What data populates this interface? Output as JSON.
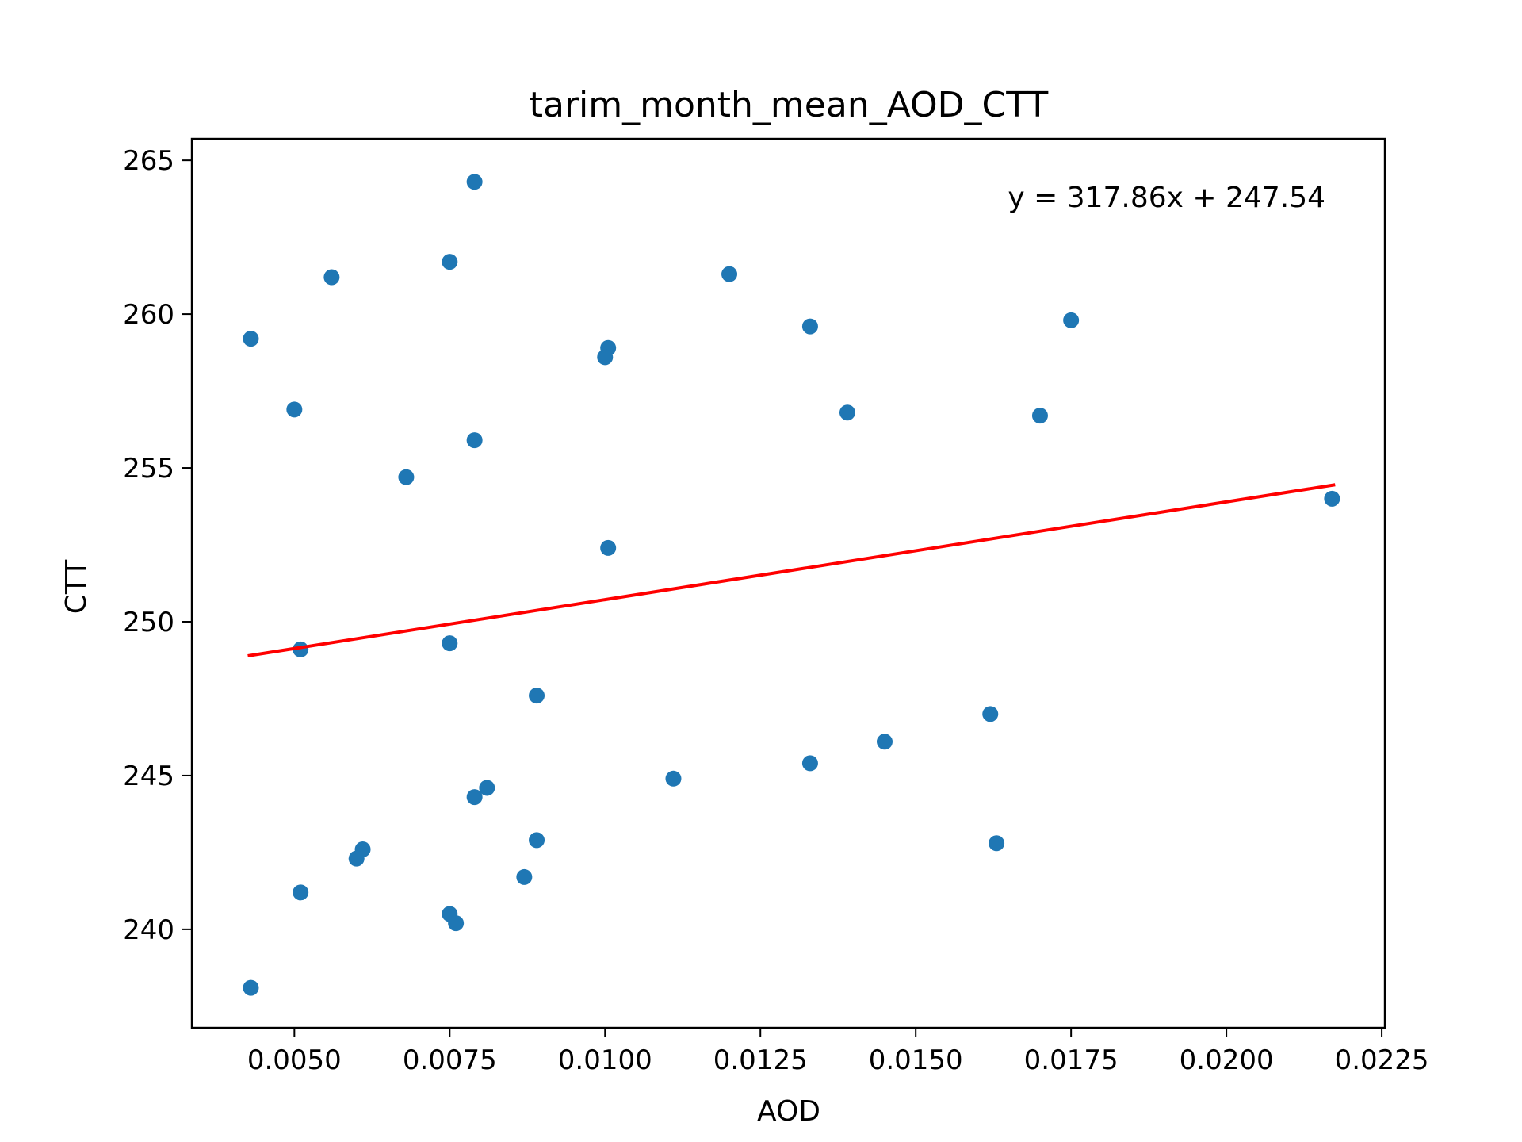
{
  "chart_data": {
    "type": "scatter",
    "title": "tarim_month_mean_AOD_CTT",
    "xlabel": "AOD",
    "ylabel": "CTT",
    "xlim": [
      0.00335,
      0.02255
    ],
    "ylim": [
      236.8,
      265.7
    ],
    "xticks": [
      0.005,
      0.0075,
      0.01,
      0.0125,
      0.015,
      0.0175,
      0.02,
      0.0225
    ],
    "xtick_labels": [
      "0.0050",
      "0.0075",
      "0.0100",
      "0.0125",
      "0.0150",
      "0.0175",
      "0.0200",
      "0.0225"
    ],
    "yticks": [
      240,
      245,
      250,
      255,
      260,
      265
    ],
    "ytick_labels": [
      "240",
      "245",
      "250",
      "255",
      "260",
      "265"
    ],
    "grid": false,
    "point_color": "#1f77b4",
    "line_color": "#ff0000",
    "annotation": "y = 317.86x + 247.54",
    "fit": {
      "slope": 317.86,
      "intercept": 247.54,
      "x_range": [
        0.00425,
        0.02175
      ]
    },
    "points": [
      {
        "x": 0.0079,
        "y": 264.3
      },
      {
        "x": 0.0075,
        "y": 261.7
      },
      {
        "x": 0.0056,
        "y": 261.2
      },
      {
        "x": 0.0043,
        "y": 259.2
      },
      {
        "x": 0.01005,
        "y": 258.9
      },
      {
        "x": 0.01,
        "y": 258.6
      },
      {
        "x": 0.005,
        "y": 256.9
      },
      {
        "x": 0.0079,
        "y": 255.9
      },
      {
        "x": 0.0068,
        "y": 254.7
      },
      {
        "x": 0.012,
        "y": 261.3
      },
      {
        "x": 0.0133,
        "y": 259.6
      },
      {
        "x": 0.0139,
        "y": 256.8
      },
      {
        "x": 0.0175,
        "y": 259.8
      },
      {
        "x": 0.017,
        "y": 256.7
      },
      {
        "x": 0.0217,
        "y": 254.0
      },
      {
        "x": 0.01005,
        "y": 252.4
      },
      {
        "x": 0.0051,
        "y": 249.1
      },
      {
        "x": 0.0075,
        "y": 249.3
      },
      {
        "x": 0.0089,
        "y": 247.6
      },
      {
        "x": 0.0162,
        "y": 247.0
      },
      {
        "x": 0.0145,
        "y": 246.1
      },
      {
        "x": 0.0133,
        "y": 245.4
      },
      {
        "x": 0.0111,
        "y": 244.9
      },
      {
        "x": 0.0081,
        "y": 244.6
      },
      {
        "x": 0.0079,
        "y": 244.3
      },
      {
        "x": 0.0089,
        "y": 242.9
      },
      {
        "x": 0.0163,
        "y": 242.8
      },
      {
        "x": 0.0061,
        "y": 242.6
      },
      {
        "x": 0.006,
        "y": 242.3
      },
      {
        "x": 0.0087,
        "y": 241.7
      },
      {
        "x": 0.0051,
        "y": 241.2
      },
      {
        "x": 0.0075,
        "y": 240.5
      },
      {
        "x": 0.0076,
        "y": 240.2
      },
      {
        "x": 0.0043,
        "y": 238.1
      }
    ]
  }
}
